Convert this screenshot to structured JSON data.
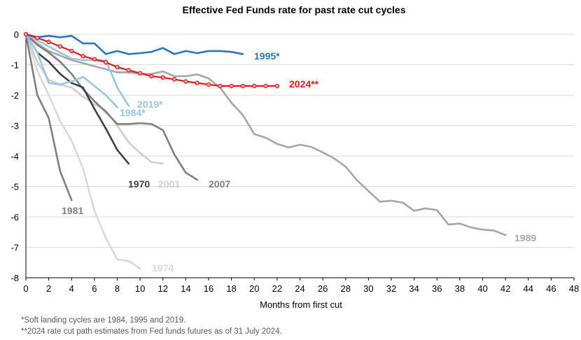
{
  "chart_data": {
    "type": "line",
    "title": "Effective Fed Funds rate for past rate cut cycles",
    "xlabel": "Months from first cut",
    "ylabel": "",
    "xlim": [
      0,
      48
    ],
    "ylim": [
      -8,
      0
    ],
    "x_ticks": [
      0,
      2,
      4,
      6,
      8,
      10,
      12,
      14,
      16,
      18,
      20,
      22,
      24,
      26,
      28,
      30,
      32,
      34,
      36,
      38,
      40,
      42,
      44,
      46,
      48
    ],
    "y_ticks": [
      0,
      -1,
      -2,
      -3,
      -4,
      -5,
      -6,
      -7,
      -8
    ],
    "grid": true,
    "legend": "inline labels",
    "series": [
      {
        "name": "1974",
        "label": "1974",
        "color": "#d9d9d9",
        "x": [
          0,
          1,
          2,
          3,
          4,
          5,
          6,
          7,
          8,
          9,
          10
        ],
        "y": [
          0,
          -1.2,
          -2.0,
          -2.85,
          -3.5,
          -4.4,
          -5.8,
          -6.7,
          -7.4,
          -7.45,
          -7.7
        ]
      },
      {
        "name": "2001",
        "label": "2001",
        "color": "#cfcfcf",
        "x": [
          0,
          1,
          2,
          3,
          4,
          5,
          6,
          7,
          8,
          9,
          10,
          11,
          12
        ],
        "y": [
          0,
          -0.9,
          -1.5,
          -1.65,
          -1.75,
          -2.05,
          -2.3,
          -2.5,
          -3.0,
          -3.55,
          -3.9,
          -4.2,
          -4.25
        ]
      },
      {
        "name": "1989",
        "label": "1989",
        "color": "#a6a6a6",
        "x": [
          0,
          1,
          2,
          3,
          4,
          5,
          6,
          7,
          8,
          9,
          10,
          11,
          12,
          13,
          14,
          15,
          16,
          17,
          18,
          19,
          20,
          21,
          22,
          23,
          24,
          25,
          26,
          27,
          28,
          29,
          30,
          31,
          32,
          33,
          34,
          35,
          36,
          37,
          38,
          39,
          40,
          41,
          42
        ],
        "y": [
          0,
          -0.3,
          -0.55,
          -0.7,
          -0.85,
          -0.95,
          -1.05,
          -1.15,
          -1.25,
          -1.25,
          -1.3,
          -1.3,
          -1.22,
          -1.38,
          -1.38,
          -1.32,
          -1.45,
          -1.75,
          -2.25,
          -2.65,
          -3.28,
          -3.4,
          -3.6,
          -3.72,
          -3.63,
          -3.7,
          -3.88,
          -4.08,
          -4.35,
          -4.8,
          -5.15,
          -5.5,
          -5.47,
          -5.53,
          -5.8,
          -5.72,
          -5.78,
          -6.25,
          -6.22,
          -6.35,
          -6.42,
          -6.45,
          -6.6
        ]
      },
      {
        "name": "1981",
        "label": "1981",
        "color": "#7f7f7f",
        "x": [
          0,
          1,
          2,
          3,
          4
        ],
        "y": [
          0,
          -2.0,
          -2.75,
          -4.5,
          -5.45
        ]
      },
      {
        "name": "2007",
        "label": "2007",
        "color": "#7f7f7f",
        "x": [
          0,
          1,
          2,
          3,
          4,
          5,
          6,
          7,
          8,
          9,
          10,
          11,
          12,
          13,
          14,
          15
        ],
        "y": [
          0,
          -0.35,
          -0.6,
          -0.9,
          -1.3,
          -1.8,
          -2.2,
          -2.55,
          -2.95,
          -2.95,
          -2.92,
          -2.95,
          -3.15,
          -3.95,
          -4.55,
          -4.78
        ]
      },
      {
        "name": "1970",
        "label": "1970",
        "color": "#404040",
        "x": [
          0,
          1,
          2,
          3,
          4,
          5,
          6,
          7,
          8,
          9
        ],
        "y": [
          0,
          -0.6,
          -0.9,
          -1.3,
          -1.6,
          -1.75,
          -2.45,
          -3.1,
          -3.8,
          -4.25
        ]
      },
      {
        "name": "1984",
        "label": "1984*",
        "color": "#9dc3e6",
        "x": [
          0,
          1,
          2,
          3,
          4,
          5,
          6,
          7,
          8
        ],
        "y": [
          0,
          -0.6,
          -1.6,
          -1.65,
          -1.55,
          -1.4,
          -1.7,
          -2.0,
          -2.4
        ]
      },
      {
        "name": "2019",
        "label": "2019*",
        "color": "#9dc3e6",
        "x": [
          0,
          1,
          2,
          3,
          4,
          5,
          6,
          7,
          8,
          9
        ],
        "y": [
          0,
          -0.2,
          -0.4,
          -0.6,
          -0.8,
          -0.85,
          -0.85,
          -0.85,
          -1.75,
          -2.35
        ]
      },
      {
        "name": "1995",
        "label": "1995*",
        "color": "#2e75b6",
        "x": [
          0,
          1,
          2,
          3,
          4,
          5,
          6,
          7,
          8,
          9,
          10,
          11,
          12,
          13,
          14,
          15,
          16,
          17,
          18,
          19
        ],
        "y": [
          0,
          -0.1,
          -0.05,
          -0.1,
          -0.05,
          -0.3,
          -0.3,
          -0.65,
          -0.55,
          -0.65,
          -0.62,
          -0.58,
          -0.45,
          -0.65,
          -0.55,
          -0.62,
          -0.55,
          -0.55,
          -0.58,
          -0.65
        ]
      },
      {
        "name": "2024",
        "label": "2024**",
        "color": "#e3171e",
        "markers": true,
        "x": [
          0,
          1,
          2,
          3,
          4,
          5,
          6,
          7,
          8,
          9,
          10,
          11,
          12,
          13,
          14,
          15,
          16,
          17,
          18,
          19,
          20,
          21,
          22
        ],
        "y": [
          0,
          -0.12,
          -0.25,
          -0.4,
          -0.55,
          -0.72,
          -0.82,
          -0.92,
          -1.08,
          -1.18,
          -1.28,
          -1.38,
          -1.42,
          -1.48,
          -1.55,
          -1.6,
          -1.65,
          -1.7,
          -1.7,
          -1.7,
          -1.7,
          -1.7,
          -1.7
        ]
      }
    ]
  },
  "footnotes": {
    "soft_landing": "*Soft landing cycles are 1984, 1995 and 2019.",
    "futures_2024": "**2024 rate cut path estimates from Fed funds futures as of 31 July 2024."
  }
}
